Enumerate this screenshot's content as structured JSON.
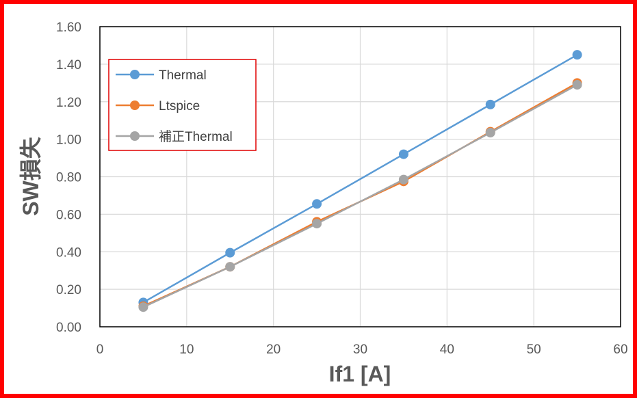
{
  "colors": {
    "frame": "#ff0000",
    "legend_border": "#e00000",
    "grid": "#d9d9d9",
    "plot_border": "#000000",
    "text": "#595959"
  },
  "chart_data": {
    "type": "line",
    "xlabel": "If1 [A]",
    "ylabel": "SW損失",
    "xlim": [
      0,
      60
    ],
    "ylim": [
      0,
      1.6
    ],
    "x_ticks": [
      "0",
      "10",
      "20",
      "30",
      "40",
      "50",
      "60"
    ],
    "y_ticks": [
      "0.00",
      "0.20",
      "0.40",
      "0.60",
      "0.80",
      "1.00",
      "1.20",
      "1.40",
      "1.60"
    ],
    "grid": true,
    "legend_position": "top-left",
    "x": [
      5,
      15,
      25,
      35,
      45,
      55
    ],
    "series": [
      {
        "name": "Thermal",
        "color": "#5b9bd5",
        "values": [
          0.13,
          0.395,
          0.655,
          0.92,
          1.185,
          1.45
        ]
      },
      {
        "name": "Ltspice",
        "color": "#ed7d31",
        "values": [
          0.11,
          0.32,
          0.56,
          0.775,
          1.04,
          1.3
        ]
      },
      {
        "name": "補正Thermal",
        "color": "#a5a5a5",
        "values": [
          0.105,
          0.32,
          0.55,
          0.785,
          1.035,
          1.29
        ]
      }
    ]
  }
}
